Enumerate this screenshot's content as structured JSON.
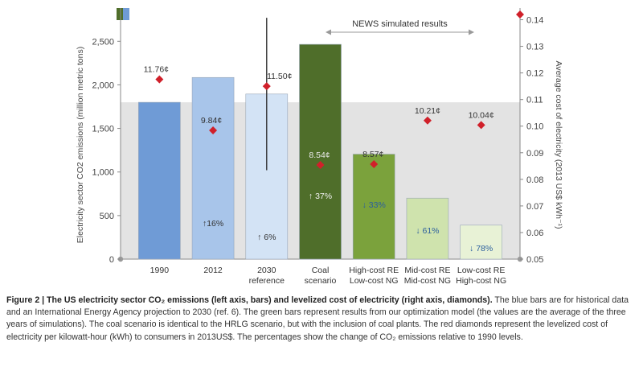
{
  "chart_data": {
    "type": "bar",
    "categories": [
      [
        "1990"
      ],
      [
        "2012"
      ],
      [
        "2030",
        "reference"
      ],
      [
        "Coal",
        "scenario"
      ],
      [
        "High-cost RE",
        "Low-cost NG"
      ],
      [
        "Mid-cost RE",
        "Mid-cost NG"
      ],
      [
        "Low-cost RE",
        "High-cost NG"
      ]
    ],
    "series": [
      {
        "name": "CO2 emissions",
        "axis": "left",
        "values": [
          1800,
          2085,
          1895,
          2465,
          1205,
          700,
          390
        ],
        "change_labels": [
          "",
          "↑16%",
          "↑ 6%",
          "↑ 37%",
          "↓ 33%",
          "↓ 61%",
          "↓ 78%"
        ],
        "colors": [
          "#6f9bd6",
          "#a8c5ea",
          "#d3e3f5",
          "#4f6e2a",
          "#7ba23c",
          "#cfe3ad",
          "#e8f2d6"
        ]
      },
      {
        "name": "Levelized cost of electricity",
        "axis": "right",
        "marker": "diamond",
        "values": [
          11.76,
          9.84,
          11.5,
          8.54,
          8.57,
          10.21,
          10.04
        ],
        "labels": [
          "11.76¢",
          "9.84¢",
          "11.50¢",
          "8.54¢",
          "8.57¢",
          "10.21¢",
          "10.04¢"
        ],
        "color": "#d0202a"
      }
    ],
    "error_bar": {
      "category_index": 2,
      "low": 1020,
      "high": 2770
    },
    "y_left": {
      "label": "Electricity sector CO2 emissions (million metric tons)",
      "ylim": [
        0,
        2900
      ],
      "ticks": [
        0,
        500,
        1000,
        1500,
        2000,
        2500
      ],
      "tick_labels": [
        "0",
        "500",
        "1,000",
        "1,500",
        "2,000",
        "2,500"
      ]
    },
    "y_right": {
      "label": "Average cost of electricity (2013 US$ kWh⁻¹)",
      "ylim": [
        0.05,
        0.145
      ],
      "ticks": [
        0.05,
        0.06,
        0.07,
        0.08,
        0.09,
        0.1,
        0.11,
        0.12,
        0.13,
        0.14
      ],
      "tick_labels": [
        "0.05",
        "0.06",
        "0.07",
        "0.08",
        "0.09",
        "0.10",
        "0.11",
        "0.12",
        "0.13",
        "0.14"
      ]
    },
    "reference_band_top": 1800,
    "reference_band_color": "#e3e3e3",
    "annotation": "NEWS simulated results",
    "legend_colors": [
      "#4f6e2a",
      "#6f9bd6"
    ],
    "legend_placement": "top-left",
    "grid": false
  },
  "caption": {
    "head": "Figure 2 | The US electricity sector CO₂ emissions (left axis, bars) and levelized cost of electricity (right axis, diamonds).",
    "body": "The blue bars are for historical data and an International Energy Agency projection to 2030 (ref. 6). The green bars represent results from our optimization model (the values are the average of the three years of simulations). The coal scenario is identical to the HRLG scenario, but with the inclusion of coal plants. The red diamonds represent the levelized cost of electricity per kilowatt-hour (kWh) to consumers in 2013US$. The percentages show the change of CO₂ emissions relative to 1990 levels."
  }
}
